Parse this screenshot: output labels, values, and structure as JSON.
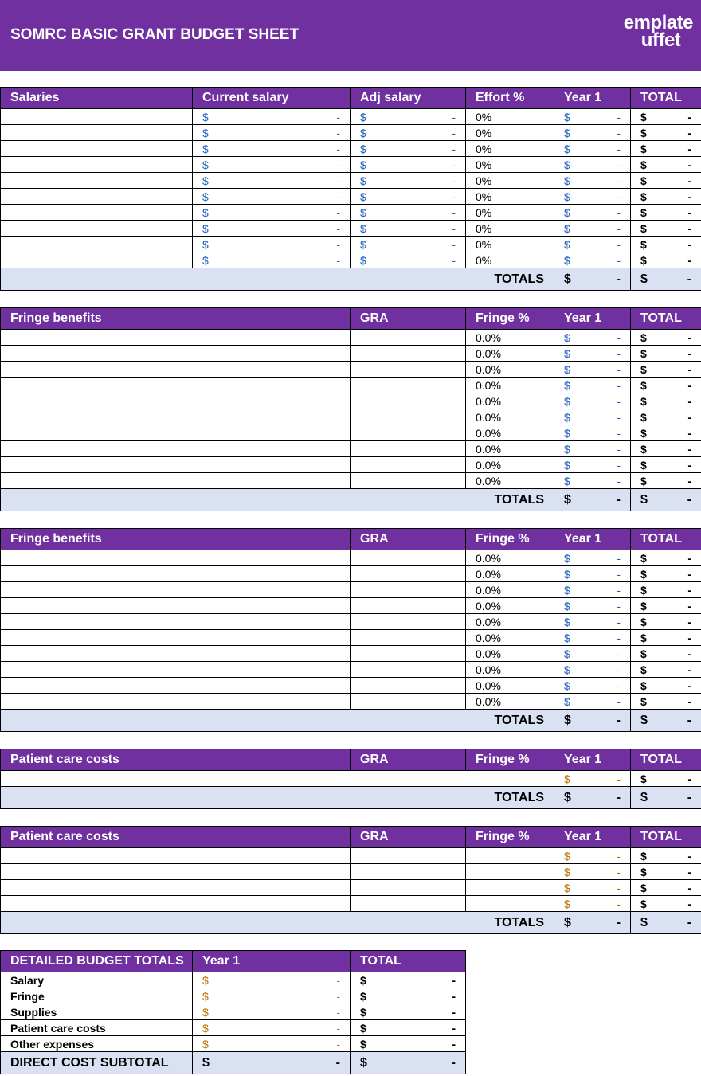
{
  "header": {
    "title": "SOMRC BASIC GRANT BUDGET SHEET",
    "logo_line1": "emplate",
    "logo_line2": "uffet"
  },
  "colors": {
    "brand": "#7030a0",
    "totals_bg": "#d9e1f2",
    "currency_blue": "#1f5fbf",
    "currency_orange": "#c07000"
  },
  "sections": [
    {
      "headers": [
        "Salaries",
        "Current salary",
        "Adj salary",
        "Effort %",
        "Year 1",
        "TOTAL"
      ],
      "spans": [
        1,
        1,
        1,
        1,
        1,
        1
      ],
      "row_layout": "salary",
      "row_count": 10,
      "row": {
        "current": "$|-",
        "adj": "$|-",
        "pct": "0%",
        "year1": "$|-",
        "total": "$|-"
      },
      "totals": {
        "label": "TOTALS",
        "year1": "$|-",
        "total": "$|-"
      }
    },
    {
      "headers": [
        "Fringe benefits",
        "GRA",
        "Fringe %",
        "Year 1",
        "TOTAL"
      ],
      "spans": [
        2,
        1,
        1,
        1,
        1
      ],
      "row_layout": "fringe",
      "row_count": 10,
      "row": {
        "pct": "0.0%",
        "year1": "$|-",
        "total": "$|-"
      },
      "totals": {
        "label": "TOTALS",
        "year1": "$|-",
        "total": "$|-"
      }
    },
    {
      "headers": [
        "Fringe benefits",
        "GRA",
        "Fringe %",
        "Year 1",
        "TOTAL"
      ],
      "spans": [
        2,
        1,
        1,
        1,
        1
      ],
      "row_layout": "fringe",
      "row_count": 10,
      "row": {
        "pct": "0.0%",
        "year1": "$|-",
        "total": "$|-"
      },
      "totals": {
        "label": "TOTALS",
        "year1": "$|-",
        "total": "$|-"
      }
    },
    {
      "headers": [
        "Patient care costs",
        "GRA",
        "Fringe %",
        "Year 1",
        "TOTAL"
      ],
      "spans": [
        2,
        1,
        1,
        1,
        1
      ],
      "row_layout": "patient-merged",
      "row_count": 1,
      "row": {
        "pct": "",
        "year1": "$|-",
        "total": "$|-"
      },
      "totals": {
        "label": "TOTALS",
        "year1": "$|-",
        "total": "$|-"
      }
    },
    {
      "headers": [
        "Patient care costs",
        "GRA",
        "Fringe %",
        "Year 1",
        "TOTAL"
      ],
      "spans": [
        2,
        1,
        1,
        1,
        1
      ],
      "row_layout": "patient",
      "row_count": 4,
      "row": {
        "pct": "",
        "year1": "$|-",
        "total": "$|-"
      },
      "totals": {
        "label": "TOTALS",
        "year1": "$|-",
        "total": "$|-"
      }
    }
  ],
  "budget_totals": {
    "headers": [
      "DETAILED BUDGET TOTALS",
      "Year 1",
      "TOTAL"
    ],
    "rows": [
      {
        "label": "Salary",
        "year1": "$|-",
        "total": "$|-"
      },
      {
        "label": "Fringe",
        "year1": "$|-",
        "total": "$|-"
      },
      {
        "label": "Supplies",
        "year1": "$|-",
        "total": "$|-"
      },
      {
        "label": "Patient care costs",
        "year1": "$|-",
        "total": "$|-"
      },
      {
        "label": "Other expenses",
        "year1": "$|-",
        "total": "$|-"
      }
    ],
    "subtotal": {
      "label": "DIRECT COST SUBTOTAL",
      "year1": "$|-",
      "total": "$|-"
    }
  }
}
